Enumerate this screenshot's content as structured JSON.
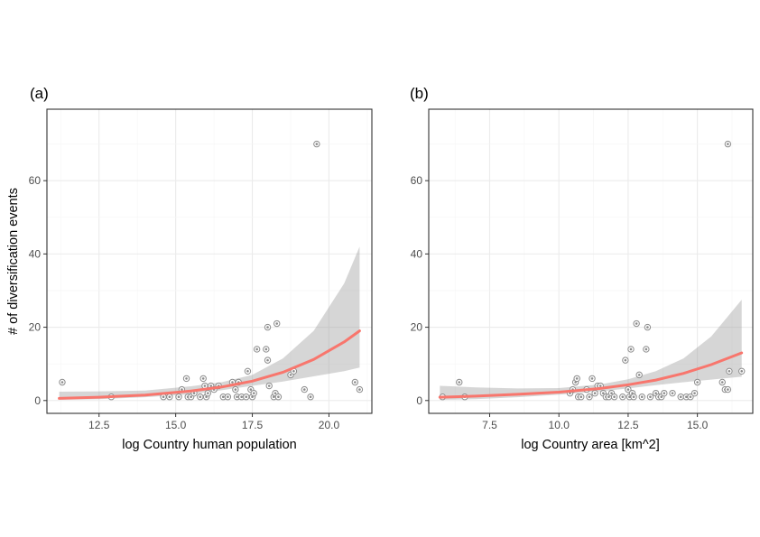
{
  "chart_data": [
    {
      "type": "scatter",
      "panel_label": "(a)",
      "xlabel": "log Country human population",
      "ylabel": "# of diversification events",
      "xlim": [
        10.8,
        21.4
      ],
      "ylim": [
        -3.5,
        79.5
      ],
      "xticks": [
        12.5,
        15.0,
        17.5,
        20.0
      ],
      "xtick_labels": [
        "12.5",
        "15.0",
        "17.5",
        "20.0"
      ],
      "yticks": [
        0,
        20,
        40,
        60
      ],
      "ytick_labels": [
        "0",
        "20",
        "40",
        "60"
      ],
      "grid": true,
      "fit_color": "#f8766d",
      "points": [
        {
          "x": 11.3,
          "y": 5
        },
        {
          "x": 12.9,
          "y": 1
        },
        {
          "x": 14.6,
          "y": 1
        },
        {
          "x": 14.8,
          "y": 1
        },
        {
          "x": 15.1,
          "y": 1
        },
        {
          "x": 15.2,
          "y": 3
        },
        {
          "x": 15.35,
          "y": 6
        },
        {
          "x": 15.4,
          "y": 1
        },
        {
          "x": 15.5,
          "y": 1
        },
        {
          "x": 15.6,
          "y": 2
        },
        {
          "x": 15.8,
          "y": 1
        },
        {
          "x": 15.9,
          "y": 6
        },
        {
          "x": 15.95,
          "y": 4
        },
        {
          "x": 16.0,
          "y": 1
        },
        {
          "x": 16.05,
          "y": 2
        },
        {
          "x": 16.15,
          "y": 4
        },
        {
          "x": 16.25,
          "y": 3
        },
        {
          "x": 16.4,
          "y": 4
        },
        {
          "x": 16.55,
          "y": 1
        },
        {
          "x": 16.7,
          "y": 1
        },
        {
          "x": 16.85,
          "y": 5
        },
        {
          "x": 16.95,
          "y": 3
        },
        {
          "x": 17.0,
          "y": 1
        },
        {
          "x": 17.05,
          "y": 5
        },
        {
          "x": 17.15,
          "y": 1
        },
        {
          "x": 17.3,
          "y": 1
        },
        {
          "x": 17.35,
          "y": 8
        },
        {
          "x": 17.45,
          "y": 3
        },
        {
          "x": 17.5,
          "y": 1
        },
        {
          "x": 17.55,
          "y": 2
        },
        {
          "x": 17.65,
          "y": 14
        },
        {
          "x": 17.95,
          "y": 14
        },
        {
          "x": 18.0,
          "y": 11
        },
        {
          "x": 18.0,
          "y": 20
        },
        {
          "x": 18.05,
          "y": 4
        },
        {
          "x": 18.2,
          "y": 1
        },
        {
          "x": 18.25,
          "y": 2
        },
        {
          "x": 18.3,
          "y": 21
        },
        {
          "x": 18.35,
          "y": 1
        },
        {
          "x": 18.75,
          "y": 7
        },
        {
          "x": 18.85,
          "y": 8
        },
        {
          "x": 19.2,
          "y": 3
        },
        {
          "x": 19.4,
          "y": 1
        },
        {
          "x": 19.6,
          "y": 70
        },
        {
          "x": 20.85,
          "y": 5
        },
        {
          "x": 21.0,
          "y": 3
        }
      ],
      "fit_x": [
        11.2,
        12.5,
        14.0,
        15.5,
        16.5,
        17.5,
        18.5,
        19.5,
        20.5,
        21.0
      ],
      "fit_y": [
        0.6,
        0.9,
        1.5,
        2.6,
        3.7,
        5.3,
        7.7,
        11.2,
        16.0,
        19.0
      ],
      "fit_lower": [
        0.2,
        0.4,
        0.9,
        1.7,
        2.8,
        4.0,
        5.2,
        6.6,
        8.0,
        9.0
      ],
      "fit_upper": [
        2.4,
        2.5,
        2.7,
        3.9,
        5.0,
        7.0,
        11.5,
        19.0,
        32.0,
        42.0
      ]
    },
    {
      "type": "scatter",
      "panel_label": "(b)",
      "xlabel": "log Country area [km^2]",
      "ylabel": "",
      "xlim": [
        5.3,
        17.0
      ],
      "ylim": [
        -3.5,
        79.5
      ],
      "xticks": [
        7.5,
        10.0,
        12.5,
        15.0
      ],
      "xtick_labels": [
        "7.5",
        "10.0",
        "12.5",
        "15.0"
      ],
      "yticks": [
        0,
        20,
        40,
        60
      ],
      "ytick_labels": [
        "0",
        "20",
        "40",
        "60"
      ],
      "grid": true,
      "fit_color": "#f8766d",
      "points": [
        {
          "x": 5.8,
          "y": 1
        },
        {
          "x": 6.4,
          "y": 5
        },
        {
          "x": 6.6,
          "y": 1
        },
        {
          "x": 10.4,
          "y": 2
        },
        {
          "x": 10.5,
          "y": 3
        },
        {
          "x": 10.6,
          "y": 5
        },
        {
          "x": 10.65,
          "y": 6
        },
        {
          "x": 10.7,
          "y": 1
        },
        {
          "x": 10.8,
          "y": 1
        },
        {
          "x": 11.0,
          "y": 3
        },
        {
          "x": 11.1,
          "y": 1
        },
        {
          "x": 11.2,
          "y": 6
        },
        {
          "x": 11.3,
          "y": 2
        },
        {
          "x": 11.4,
          "y": 4
        },
        {
          "x": 11.5,
          "y": 4
        },
        {
          "x": 11.6,
          "y": 2
        },
        {
          "x": 11.7,
          "y": 1
        },
        {
          "x": 11.8,
          "y": 1
        },
        {
          "x": 11.9,
          "y": 2
        },
        {
          "x": 12.0,
          "y": 1
        },
        {
          "x": 12.3,
          "y": 1
        },
        {
          "x": 12.4,
          "y": 11
        },
        {
          "x": 12.5,
          "y": 3
        },
        {
          "x": 12.55,
          "y": 1
        },
        {
          "x": 12.6,
          "y": 14
        },
        {
          "x": 12.65,
          "y": 2
        },
        {
          "x": 12.7,
          "y": 1
        },
        {
          "x": 12.8,
          "y": 21
        },
        {
          "x": 12.9,
          "y": 7
        },
        {
          "x": 13.0,
          "y": 1
        },
        {
          "x": 13.15,
          "y": 14
        },
        {
          "x": 13.2,
          "y": 20
        },
        {
          "x": 13.3,
          "y": 1
        },
        {
          "x": 13.5,
          "y": 2
        },
        {
          "x": 13.6,
          "y": 1
        },
        {
          "x": 13.7,
          "y": 1
        },
        {
          "x": 13.8,
          "y": 2
        },
        {
          "x": 14.1,
          "y": 2
        },
        {
          "x": 14.4,
          "y": 1
        },
        {
          "x": 14.6,
          "y": 1
        },
        {
          "x": 14.75,
          "y": 1
        },
        {
          "x": 14.9,
          "y": 2
        },
        {
          "x": 15.0,
          "y": 5
        },
        {
          "x": 15.9,
          "y": 5
        },
        {
          "x": 16.0,
          "y": 3
        },
        {
          "x": 16.1,
          "y": 3
        },
        {
          "x": 16.1,
          "y": 70
        },
        {
          "x": 16.15,
          "y": 8
        },
        {
          "x": 16.6,
          "y": 8
        }
      ],
      "fit_x": [
        5.7,
        7.0,
        8.5,
        10.0,
        11.5,
        12.5,
        13.5,
        14.5,
        15.5,
        16.6
      ],
      "fit_y": [
        0.9,
        1.2,
        1.7,
        2.3,
        3.3,
        4.3,
        5.6,
        7.4,
        9.8,
        13.0
      ],
      "fit_lower": [
        0.2,
        0.4,
        0.9,
        1.6,
        2.5,
        3.3,
        4.2,
        5.0,
        5.7,
        6.5
      ],
      "fit_upper": [
        4.0,
        3.6,
        3.3,
        3.4,
        4.4,
        5.8,
        8.0,
        11.5,
        17.5,
        27.5
      ]
    }
  ]
}
